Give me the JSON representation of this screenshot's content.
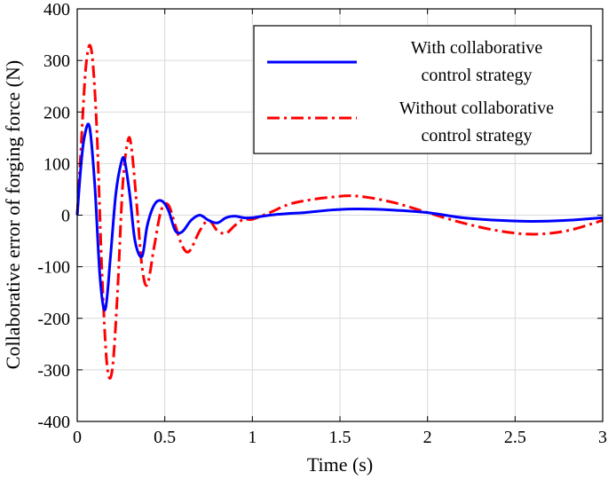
{
  "chart_data": {
    "type": "line",
    "title": "",
    "xlabel": "Time (s)",
    "ylabel": "Collaborative error of forging force (N)",
    "xlim": [
      0,
      3
    ],
    "ylim": [
      -400,
      400
    ],
    "xticks": [
      0,
      0.5,
      1,
      1.5,
      2,
      2.5,
      3
    ],
    "xtick_labels": [
      "0",
      "0.5",
      "1",
      "1.5",
      "2",
      "2.5",
      "3"
    ],
    "yticks": [
      -400,
      -300,
      -200,
      -100,
      0,
      100,
      200,
      300,
      400
    ],
    "ytick_labels": [
      "-400",
      "-300",
      "-200",
      "-100",
      "0",
      "100",
      "200",
      "300",
      "400"
    ],
    "grid": true,
    "legend_position": "top-right",
    "series": [
      {
        "name_lines": [
          "With collaborative",
          "control strategy"
        ],
        "color": "#0000ff",
        "line_style": "solid",
        "x": [
          0,
          0.02,
          0.04,
          0.07,
          0.1,
          0.13,
          0.16,
          0.19,
          0.22,
          0.25,
          0.27,
          0.3,
          0.33,
          0.37,
          0.4,
          0.44,
          0.48,
          0.52,
          0.56,
          0.6,
          0.65,
          0.7,
          0.75,
          0.8,
          0.85,
          0.9,
          0.95,
          1.0,
          1.1,
          1.2,
          1.3,
          1.45,
          1.6,
          1.8,
          2.0,
          2.2,
          2.4,
          2.6,
          2.8,
          3.0
        ],
        "y": [
          0,
          90,
          150,
          172,
          60,
          -120,
          -183,
          -80,
          40,
          100,
          107,
          40,
          -50,
          -80,
          -20,
          20,
          28,
          10,
          -30,
          -32,
          -10,
          0,
          -10,
          -15,
          -5,
          -2,
          -5,
          -5,
          0,
          3,
          5,
          10,
          12,
          10,
          5,
          -5,
          -10,
          -12,
          -10,
          -5
        ]
      },
      {
        "name_lines": [
          "Without collaborative",
          "control strategy"
        ],
        "color": "#ff0000",
        "line_style": "dash-dot",
        "x": [
          0,
          0.02,
          0.05,
          0.08,
          0.11,
          0.14,
          0.17,
          0.2,
          0.23,
          0.26,
          0.29,
          0.31,
          0.34,
          0.37,
          0.4,
          0.44,
          0.48,
          0.52,
          0.56,
          0.6,
          0.64,
          0.7,
          0.75,
          0.8,
          0.85,
          0.9,
          0.95,
          1.0,
          1.1,
          1.2,
          1.3,
          1.45,
          1.6,
          1.8,
          2.0,
          2.2,
          2.4,
          2.6,
          2.8,
          3.0
        ],
        "y": [
          0,
          120,
          290,
          322,
          180,
          -100,
          -290,
          -300,
          -150,
          60,
          145,
          130,
          20,
          -100,
          -135,
          -60,
          10,
          20,
          -20,
          -60,
          -70,
          -30,
          -10,
          -30,
          -35,
          -20,
          -8,
          -8,
          5,
          20,
          28,
          35,
          37,
          25,
          5,
          -15,
          -30,
          -37,
          -30,
          -10
        ]
      }
    ]
  },
  "colors": {
    "frame": "#000000",
    "grid": "#d9d9d9",
    "background": "#ffffff"
  }
}
